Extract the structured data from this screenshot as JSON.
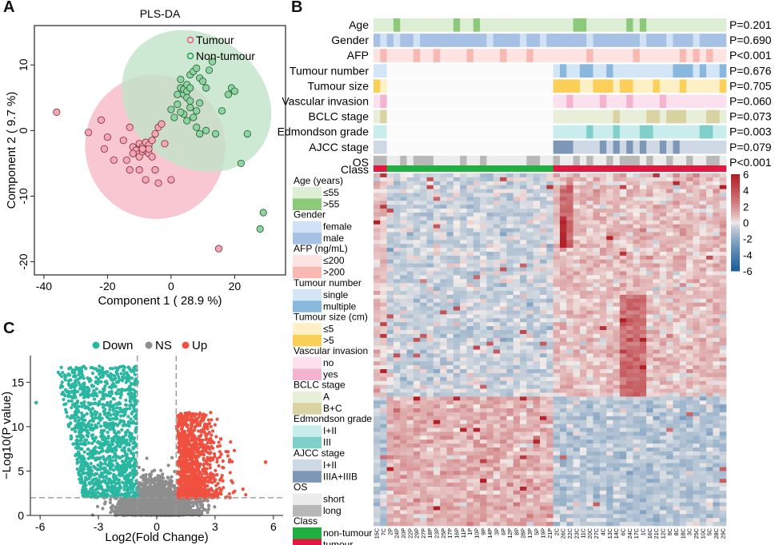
{
  "panels": {
    "a": "A",
    "b": "B",
    "c": "C"
  },
  "colors": {
    "tumour": "#e8537a",
    "tumourFill": "#f3a7b5",
    "nonTumour": "#1a9a4a",
    "nonTumourFill": "#8fd3a0",
    "ellTumour": "#f7b7c4",
    "ellNon": "#bfe3c6",
    "down": "#2ab7a1",
    "ns": "#8e8e8e",
    "up": "#f0503f",
    "classNon": "#1fb040",
    "classTumour": "#e3163f",
    "heatHigh": "#b11e26",
    "heatLow": "#1c5e9b",
    "heatMid": "#f4efec"
  },
  "chart_data": [
    {
      "type": "scatter",
      "title": "PLS-DA",
      "xlabel": "Component 1 ( 28.9 %)",
      "ylabel": "Component 2 ( 9.7 %)",
      "xlim": [
        -43,
        36
      ],
      "ylim": [
        -22,
        16
      ],
      "xticks": [
        -40,
        -20,
        0,
        20
      ],
      "yticks": [
        -20,
        -10,
        0,
        10
      ],
      "legend": [
        {
          "label": "Tumour",
          "group": "tumour"
        },
        {
          "label": "Non-tumour",
          "group": "non"
        }
      ],
      "ellipses": [
        {
          "group": "tumour",
          "center": [
            -5,
            -2.5
          ],
          "rx": 22,
          "ry": 11,
          "angle_deg": 15
        },
        {
          "group": "non",
          "center": [
            8,
            4.5
          ],
          "rx": 25,
          "ry": 10,
          "angle_deg": -37
        }
      ],
      "series": [
        {
          "name": "Tumour",
          "group": "tumour",
          "points": [
            [
              -36,
              2.8
            ],
            [
              -26,
              -0.3
            ],
            [
              -22,
              1.6
            ],
            [
              -21,
              -2.8
            ],
            [
              -20,
              -1
            ],
            [
              -18,
              -4.5
            ],
            [
              -15,
              -1.5
            ],
            [
              -14,
              -4.5
            ],
            [
              -13,
              0.5
            ],
            [
              -13,
              -6
            ],
            [
              -12,
              -2.5
            ],
            [
              -11,
              -3
            ],
            [
              -10,
              -2
            ],
            [
              -10,
              -3.5
            ],
            [
              -10,
              -4
            ],
            [
              -9,
              -2.5
            ],
            [
              -9,
              -3.2
            ],
            [
              -8,
              -1.8
            ],
            [
              -8,
              -3
            ],
            [
              -7,
              -3.5
            ],
            [
              -7,
              -2.2
            ],
            [
              -6,
              -1.5
            ],
            [
              -6,
              -4
            ],
            [
              -5,
              -0.5
            ],
            [
              -5,
              -6
            ],
            [
              -4,
              0.5
            ],
            [
              -3,
              1
            ],
            [
              -2,
              -2
            ],
            [
              -10,
              -6
            ],
            [
              -8,
              -7.5
            ],
            [
              -4,
              -8
            ],
            [
              0,
              -7.5
            ],
            [
              15,
              -18
            ],
            [
              -7,
              -2.8
            ],
            [
              -9,
              -2.8
            ],
            [
              -12,
              -3.5
            ]
          ]
        },
        {
          "name": "Non-tumour",
          "group": "non",
          "points": [
            [
              0,
              3.2
            ],
            [
              1,
              2
            ],
            [
              2,
              4
            ],
            [
              2,
              5.5
            ],
            [
              3,
              6.5
            ],
            [
              3,
              7.8
            ],
            [
              4,
              5.5
            ],
            [
              4,
              6.3
            ],
            [
              5,
              6
            ],
            [
              5,
              7
            ],
            [
              5,
              5
            ],
            [
              6,
              6.5
            ],
            [
              6,
              8.5
            ],
            [
              7,
              9
            ],
            [
              8,
              9.5
            ],
            [
              9,
              8
            ],
            [
              10,
              7.5
            ],
            [
              11,
              6.5
            ],
            [
              12,
              9.2
            ],
            [
              13,
              10.5
            ],
            [
              6,
              3.5
            ],
            [
              4,
              2.5
            ],
            [
              7,
              2
            ],
            [
              8,
              0.5
            ],
            [
              9,
              -0.5
            ],
            [
              11,
              0
            ],
            [
              8,
              3
            ],
            [
              5,
              1.5
            ],
            [
              14,
              -0.5
            ],
            [
              16,
              3
            ],
            [
              18,
              5.5
            ],
            [
              19,
              6.5
            ],
            [
              20,
              6
            ],
            [
              24,
              -0.5
            ],
            [
              29,
              -12.5
            ],
            [
              28,
              -15
            ],
            [
              22,
              -5
            ],
            [
              3,
              2.8
            ],
            [
              6,
              4.5
            ],
            [
              9,
              4.2
            ]
          ]
        }
      ]
    },
    {
      "type": "scatter",
      "subtype": "volcano",
      "xlabel": "Log2(Fold Change)",
      "ylabel": "−Log10(P value)",
      "xlim": [
        -6.5,
        6.5
      ],
      "ylim": [
        0,
        18
      ],
      "xticks": [
        -6,
        -3,
        0,
        3,
        6
      ],
      "yticks": [
        0,
        5,
        10,
        15
      ],
      "thresholds": {
        "fc": [
          -1,
          1
        ],
        "p": 2
      },
      "legend": [
        {
          "label": "Down",
          "group": "down"
        },
        {
          "label": "NS",
          "group": "ns"
        },
        {
          "label": "Up",
          "group": "up"
        }
      ],
      "series_summary": [
        {
          "name": "Down",
          "x_range": [
            -6.2,
            -1
          ],
          "y_range": [
            2,
            16.8
          ],
          "max_y_x": -3
        },
        {
          "name": "NS",
          "x_range": [
            -4.5,
            4.5
          ],
          "y_range": [
            0,
            8
          ],
          "center": 0
        },
        {
          "name": "Up",
          "x_range": [
            1,
            5.6
          ],
          "y_range": [
            2,
            11.5
          ],
          "max_y_x": 1.5
        }
      ]
    },
    {
      "type": "heatmap",
      "annotations": [
        {
          "label": "Age",
          "p": "P=0.201"
        },
        {
          "label": "Gender",
          "p": "P=0.690"
        },
        {
          "label": "AFP",
          "p": "P<0.001"
        },
        {
          "label": "Tumour number",
          "p": "P=0.676"
        },
        {
          "label": "Tumour size",
          "p": "P=0.705"
        },
        {
          "label": "Vascular invasion",
          "p": "P=0.060"
        },
        {
          "label": "BCLC stage",
          "p": "P=0.073"
        },
        {
          "label": "Edmondson grade",
          "p": "P=0.003"
        },
        {
          "label": "AJCC stage",
          "p": "P=0.079"
        },
        {
          "label": "OS",
          "p": "P<0.001"
        }
      ],
      "class_label": "Class",
      "groups": {
        "tumour_cols_first": 2,
        "non_tumour_cols": 25,
        "tumour_cols_rest": 26
      },
      "colorbar": {
        "ticks": [
          6,
          4,
          2,
          0,
          -2,
          -4,
          -6
        ],
        "range": [
          -6,
          6
        ]
      },
      "legend": [
        {
          "title": "Age (years)",
          "items": [
            {
              "label": "≤55",
              "color": "#dcefd4"
            },
            {
              "label": ">55",
              "color": "#8cc97a"
            }
          ]
        },
        {
          "title": "Gender",
          "items": [
            {
              "label": "female",
              "color": "#d0e2f3"
            },
            {
              "label": "male",
              "color": "#a7c1e4"
            }
          ]
        },
        {
          "title": "AFP (ng/mL)",
          "items": [
            {
              "label": "≤200",
              "color": "#fde3e1"
            },
            {
              "label": ">200",
              "color": "#f9b8b2"
            }
          ]
        },
        {
          "title": "Tumour number",
          "items": [
            {
              "label": "single",
              "color": "#d3e6f5"
            },
            {
              "label": "multiple",
              "color": "#8ab7dd"
            }
          ]
        },
        {
          "title": "Tumour size (cm)",
          "items": [
            {
              "label": "≤5",
              "color": "#fdf0c4"
            },
            {
              "label": ">5",
              "color": "#fbcf58"
            }
          ]
        },
        {
          "title": "Vascular invasion",
          "items": [
            {
              "label": "no",
              "color": "#fbe0ee"
            },
            {
              "label": "yes",
              "color": "#f4b4cf"
            }
          ]
        },
        {
          "title": "BCLC stage",
          "items": [
            {
              "label": "A",
              "color": "#e8efd8"
            },
            {
              "label": "B+C",
              "color": "#d9d3a2"
            }
          ]
        },
        {
          "title": "Edmondson grade",
          "items": [
            {
              "label": "I+II",
              "color": "#c9ecec"
            },
            {
              "label": "III",
              "color": "#7fcfcb"
            }
          ]
        },
        {
          "title": "AJCC stage",
          "items": [
            {
              "label": "I+II",
              "color": "#cfd9e6"
            },
            {
              "label": "IIIA+IIIB",
              "color": "#7f97b6"
            }
          ]
        },
        {
          "title": "OS",
          "items": [
            {
              "label": "short",
              "color": "#ececec"
            },
            {
              "label": "long",
              "color": "#b8b8b8"
            }
          ]
        },
        {
          "title": "Class",
          "items": [
            {
              "label": "non-tumour",
              "color": "#1fb040"
            },
            {
              "label": "tumour",
              "color": "#e3163f"
            }
          ]
        }
      ],
      "column_labels": [
        "15C",
        "7C",
        "2P",
        "24P",
        "20P",
        "22P",
        "29P",
        "27P",
        "18P",
        "23P",
        "25P",
        "17P",
        "16P",
        "11P",
        "1P",
        "10P",
        "9P",
        "14P",
        "3P",
        "6P",
        "12P",
        "8P",
        "28P",
        "13P",
        "5P",
        "19P",
        "21P",
        "2C",
        "26C",
        "22C",
        "23C",
        "11C",
        "20C",
        "27C",
        "4C",
        "13C",
        "14C",
        "6C",
        "24C",
        "17C",
        "1C",
        "16C",
        "21C",
        "12C",
        "9C",
        "8C",
        "18C",
        "3C",
        "25C",
        "10C",
        "5C",
        "28C",
        "29C"
      ]
    }
  ]
}
